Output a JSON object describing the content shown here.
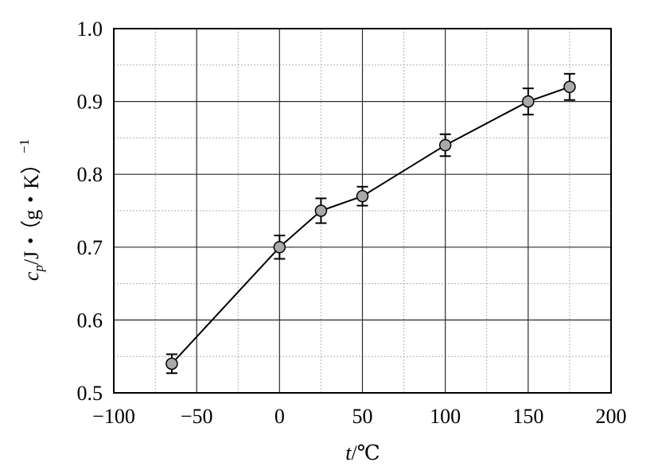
{
  "chart_data": {
    "type": "line",
    "title": "",
    "xlabel_var": "t",
    "xlabel_unit": "/℃",
    "ylabel_var": "c",
    "ylabel_sub": "p",
    "ylabel_unit": "/J・（g・K）",
    "ylabel_sup": "−1",
    "xlim": [
      -100,
      200
    ],
    "ylim": [
      0.5,
      1.0
    ],
    "xticks": [
      -100,
      -50,
      0,
      50,
      100,
      150,
      200
    ],
    "xtick_labels": [
      "−100",
      "−50",
      "0",
      "50",
      "100",
      "150",
      "200"
    ],
    "yticks": [
      0.5,
      0.6,
      0.7,
      0.8,
      0.9,
      1.0
    ],
    "ytick_labels": [
      "0.5",
      "0.6",
      "0.7",
      "0.8",
      "0.9",
      "1.0"
    ],
    "grid": true,
    "series": [
      {
        "x": [
          -65,
          0,
          25,
          50,
          100,
          150,
          175
        ],
        "y": [
          0.54,
          0.7,
          0.75,
          0.77,
          0.84,
          0.9,
          0.92
        ],
        "yerr": [
          0.013,
          0.016,
          0.017,
          0.013,
          0.015,
          0.018,
          0.018
        ]
      }
    ],
    "colors": {
      "line": "#000000",
      "marker_fill": "#a9a9a9",
      "grid_major": "#2b2b2b",
      "grid_minor": "#b0b0b0"
    }
  }
}
